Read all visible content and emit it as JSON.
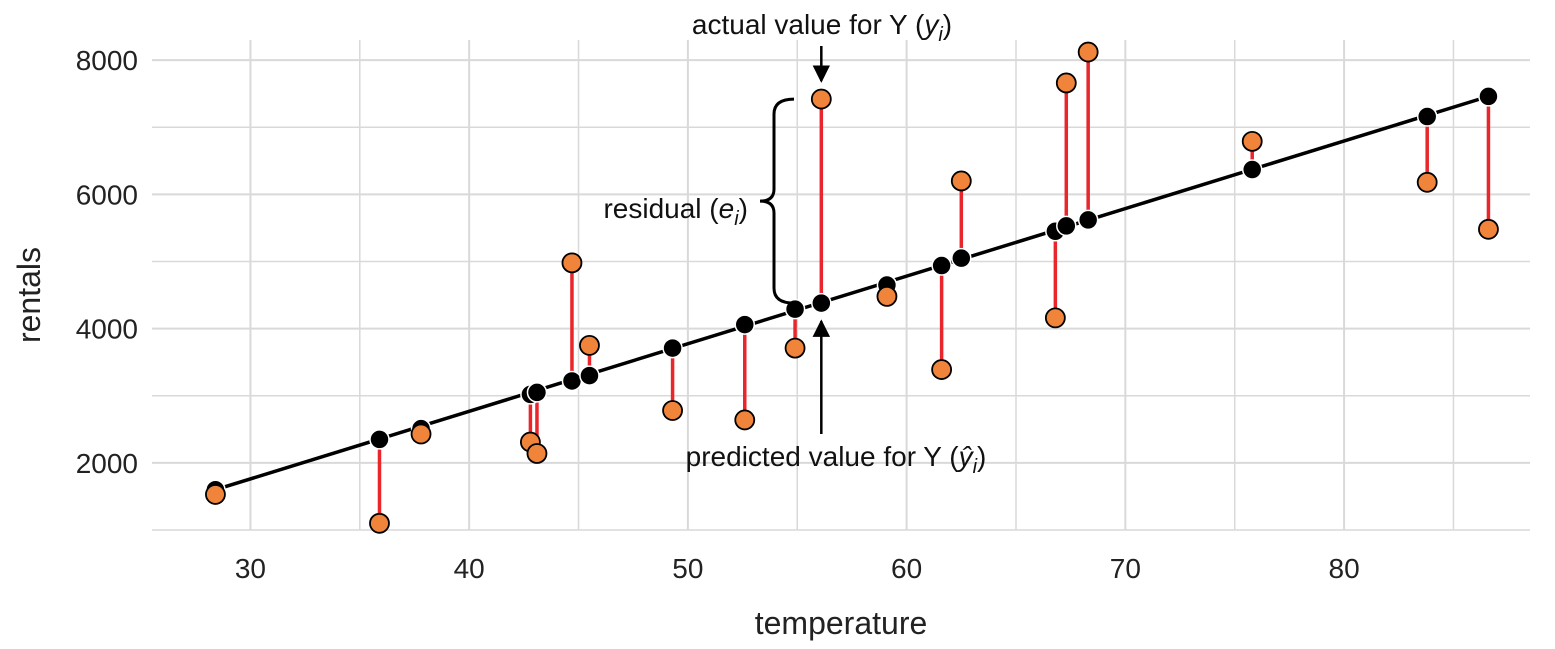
{
  "chart_data": {
    "type": "scatter",
    "xlabel": "temperature",
    "ylabel": "rentals",
    "xlim": [
      25.5,
      88.5
    ],
    "ylim": [
      1000,
      8300
    ],
    "x_ticks": [
      30,
      40,
      50,
      60,
      70,
      80
    ],
    "y_ticks": [
      2000,
      4000,
      6000,
      8000
    ],
    "grid": true,
    "colors": {
      "actual": "#f0843a",
      "predicted": "#000000",
      "residual": "#e8262b",
      "fit_line": "#000000",
      "grid": "#d9d9d9"
    },
    "regression_line": {
      "intercept": -1700,
      "slope": 105.5
    },
    "points": [
      {
        "x": 28.4,
        "actual": 1530,
        "predicted": 1600
      },
      {
        "x": 35.9,
        "actual": 1100,
        "predicted": 2350
      },
      {
        "x": 37.8,
        "actual": 2430,
        "predicted": 2510
      },
      {
        "x": 42.8,
        "actual": 2310,
        "predicted": 3020
      },
      {
        "x": 43.1,
        "actual": 2140,
        "predicted": 3050
      },
      {
        "x": 44.7,
        "actual": 4980,
        "predicted": 3220
      },
      {
        "x": 45.5,
        "actual": 3750,
        "predicted": 3300
      },
      {
        "x": 49.3,
        "actual": 2780,
        "predicted": 3710
      },
      {
        "x": 52.6,
        "actual": 2640,
        "predicted": 4060
      },
      {
        "x": 54.9,
        "actual": 3710,
        "predicted": 4290
      },
      {
        "x": 56.1,
        "actual": 7420,
        "predicted": 4380
      },
      {
        "x": 59.1,
        "actual": 4480,
        "predicted": 4650
      },
      {
        "x": 61.6,
        "actual": 3390,
        "predicted": 4940
      },
      {
        "x": 62.5,
        "actual": 6200,
        "predicted": 5050
      },
      {
        "x": 66.8,
        "actual": 4160,
        "predicted": 5450
      },
      {
        "x": 67.3,
        "actual": 7660,
        "predicted": 5530
      },
      {
        "x": 68.3,
        "actual": 8120,
        "predicted": 5620
      },
      {
        "x": 75.8,
        "actual": 6790,
        "predicted": 6370
      },
      {
        "x": 83.8,
        "actual": 6180,
        "predicted": 7160
      },
      {
        "x": 86.6,
        "actual": 5480,
        "predicted": 7460
      }
    ],
    "annotations": {
      "actual": {
        "prefix": "actual value for Y (",
        "symbol": "y",
        "sub": "i",
        "suffix": ")",
        "target_index": 10
      },
      "predicted": {
        "prefix": "predicted value for Y (",
        "symbol": "ŷ",
        "sub": "i",
        "suffix": ")",
        "target_index": 10
      },
      "residual": {
        "prefix": "residual (",
        "symbol": "e",
        "sub": "i",
        "suffix": ")",
        "target_index": 10
      }
    }
  }
}
